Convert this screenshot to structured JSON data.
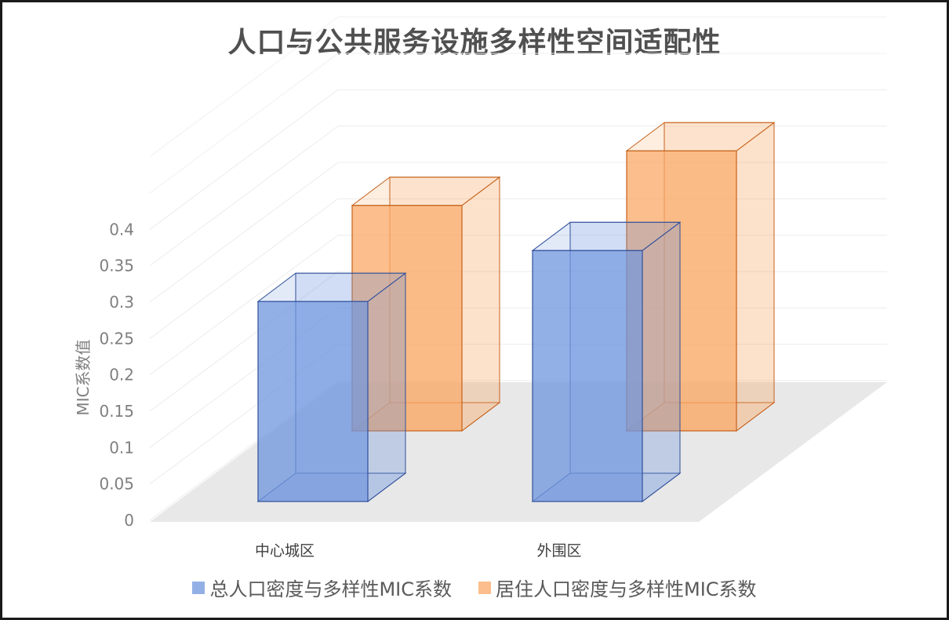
{
  "chart_data": {
    "type": "bar",
    "title": "人口与公共服务设施多样性空间适配性",
    "ylabel": "MIC系数值",
    "xlabel": "",
    "ylim": [
      0,
      0.4
    ],
    "yticks": [
      "0",
      "0.05",
      "0.1",
      "0.15",
      "0.2",
      "0.25",
      "0.3",
      "0.35",
      "0.4"
    ],
    "categories": [
      "中心城区",
      "外围区"
    ],
    "series": [
      {
        "name": "总人口密度与多样性MIC系数",
        "values": [
          0.275,
          0.345
        ],
        "color": "#6f96de"
      },
      {
        "name": "居住人口密度与多样性MIC系数",
        "values": [
          0.31,
          0.385
        ],
        "color": "#f9a865"
      }
    ],
    "grid": true,
    "legend_position": "bottom",
    "projection": "3d"
  }
}
